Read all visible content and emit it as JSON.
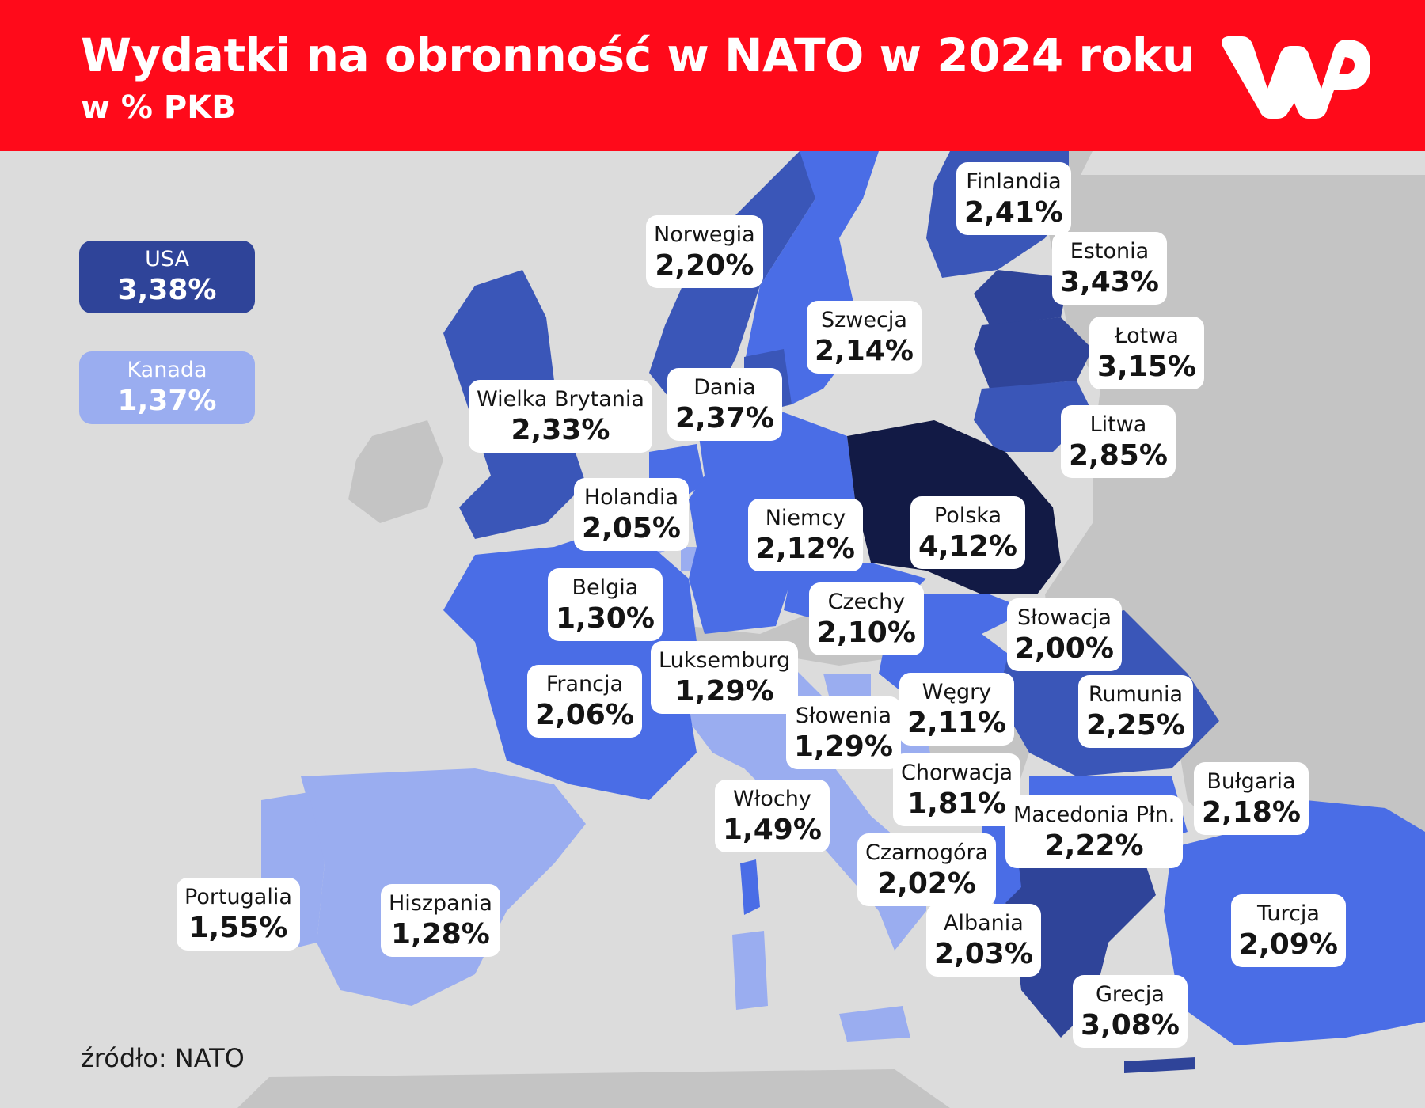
{
  "header": {
    "title": "Wydatki na obronność w NATO w 2024 roku",
    "subtitle": "w % PKB",
    "logo_text": "WP"
  },
  "legend": [
    {
      "name": "USA",
      "value": "3,38%",
      "color": "#2f4499"
    },
    {
      "name": "Kanada",
      "value": "1,37%",
      "color": "#9aadf0"
    }
  ],
  "countries": [
    {
      "name": "Finlandia",
      "value": "2,41%",
      "color": "#3a56b8"
    },
    {
      "name": "Estonia",
      "value": "3,43%",
      "color": "#2f4499"
    },
    {
      "name": "Norwegia",
      "value": "2,20%",
      "color": "#3a56b8"
    },
    {
      "name": "Łotwa",
      "value": "3,15%",
      "color": "#2f4499"
    },
    {
      "name": "Szwecja",
      "value": "2,14%",
      "color": "#4a6de6"
    },
    {
      "name": "Dania",
      "value": "2,37%",
      "color": "#3a56b8"
    },
    {
      "name": "Wielka Brytania",
      "value": "2,33%",
      "color": "#3a56b8"
    },
    {
      "name": "Litwa",
      "value": "2,85%",
      "color": "#3a56b8"
    },
    {
      "name": "Holandia",
      "value": "2,05%",
      "color": "#4a6de6"
    },
    {
      "name": "Niemcy",
      "value": "2,12%",
      "color": "#4a6de6"
    },
    {
      "name": "Polska",
      "value": "4,12%",
      "color": "#121a45"
    },
    {
      "name": "Belgia",
      "value": "1,30%",
      "color": "#9aadf0"
    },
    {
      "name": "Czechy",
      "value": "2,10%",
      "color": "#4a6de6"
    },
    {
      "name": "Słowacja",
      "value": "2,00%",
      "color": "#4a6de6"
    },
    {
      "name": "Luksemburg",
      "value": "1,29%",
      "color": "#9aadf0"
    },
    {
      "name": "Francja",
      "value": "2,06%",
      "color": "#4a6de6"
    },
    {
      "name": "Węgry",
      "value": "2,11%",
      "color": "#4a6de6"
    },
    {
      "name": "Rumunia",
      "value": "2,25%",
      "color": "#3a56b8"
    },
    {
      "name": "Słowenia",
      "value": "1,29%",
      "color": "#9aadf0"
    },
    {
      "name": "Chorwacja",
      "value": "1,81%",
      "color": "#9aadf0"
    },
    {
      "name": "Włochy",
      "value": "1,49%",
      "color": "#9aadf0"
    },
    {
      "name": "Bułgaria",
      "value": "2,18%",
      "color": "#4a6de6"
    },
    {
      "name": "Macedonia Płn.",
      "value": "2,22%",
      "color": "#3a56b8"
    },
    {
      "name": "Czarnogóra",
      "value": "2,02%",
      "color": "#4a6de6"
    },
    {
      "name": "Portugalia",
      "value": "1,55%",
      "color": "#9aadf0"
    },
    {
      "name": "Hiszpania",
      "value": "1,28%",
      "color": "#9aadf0"
    },
    {
      "name": "Albania",
      "value": "2,03%",
      "color": "#4a6de6"
    },
    {
      "name": "Turcja",
      "value": "2,09%",
      "color": "#4a6de6"
    },
    {
      "name": "Grecja",
      "value": "3,08%",
      "color": "#2f4499"
    }
  ],
  "source": "źródło: NATO"
}
